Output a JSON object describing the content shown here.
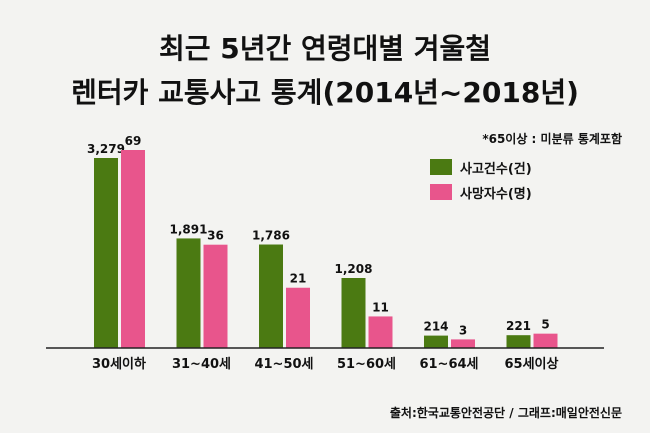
{
  "header": {
    "title_line1": "최근 5년간 연령대별 겨울철",
    "title_line2": "렌터카 교통사고 통계(2014년~2018년)"
  },
  "note": "*65이상 : 미분류 통계포함",
  "source": "출처:한국교통안전공단 / 그래프:매일안전신문",
  "colors": {
    "accidents": "#4b7a12",
    "deaths": "#e8558c"
  },
  "chart_data": {
    "type": "bar",
    "title": "최근 5년간 연령대별 겨울철 렌터카 교통사고 통계(2014년~2018년)",
    "categories": [
      "30세이하",
      "31~40세",
      "41~50세",
      "51~60세",
      "61~64세",
      "65세이상"
    ],
    "series": [
      {
        "name": "사고건수(건)",
        "values": [
          3279,
          1891,
          1786,
          1208,
          214,
          221
        ],
        "labels": [
          "3,279",
          "1,891",
          "1,786",
          "1,208",
          "214",
          "221"
        ]
      },
      {
        "name": "사망자수(명)",
        "values": [
          69,
          36,
          21,
          11,
          3,
          5
        ],
        "labels": [
          "69",
          "36",
          "21",
          "11",
          "3",
          "5"
        ]
      }
    ],
    "legend": "top-right",
    "xlabel": "",
    "ylabel": ""
  }
}
